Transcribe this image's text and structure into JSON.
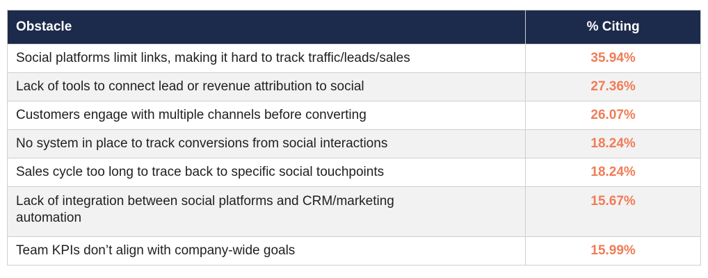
{
  "chart_data": {
    "type": "table",
    "columns": [
      "Obstacle",
      "% Citing"
    ],
    "rows": [
      {
        "obstacle": "Social platforms limit links, making it hard to track traffic/leads/sales",
        "pct": "35.94%",
        "value": 35.94
      },
      {
        "obstacle": "Lack of tools to connect lead or revenue attribution to social",
        "pct": "27.36%",
        "value": 27.36
      },
      {
        "obstacle": "Customers engage with multiple channels before converting",
        "pct": "26.07%",
        "value": 26.07
      },
      {
        "obstacle": "No system in place to track conversions from social interactions",
        "pct": "18.24%",
        "value": 18.24
      },
      {
        "obstacle": "Sales cycle too long to trace back to specific social touchpoints",
        "pct": "18.24%",
        "value": 18.24
      },
      {
        "obstacle": "Lack of integration between social platforms and CRM/marketing automation",
        "pct": "15.67%",
        "value": 15.67
      },
      {
        "obstacle": "Team KPIs don’t align with company-wide goals",
        "pct": "15.99%",
        "value": 15.99
      }
    ]
  },
  "colors": {
    "header_bg": "#1c2a4b",
    "header_text": "#ffffff",
    "value_text": "#f07c56",
    "shaded_row": "#f2f2f2",
    "border": "#cfcfcf"
  }
}
